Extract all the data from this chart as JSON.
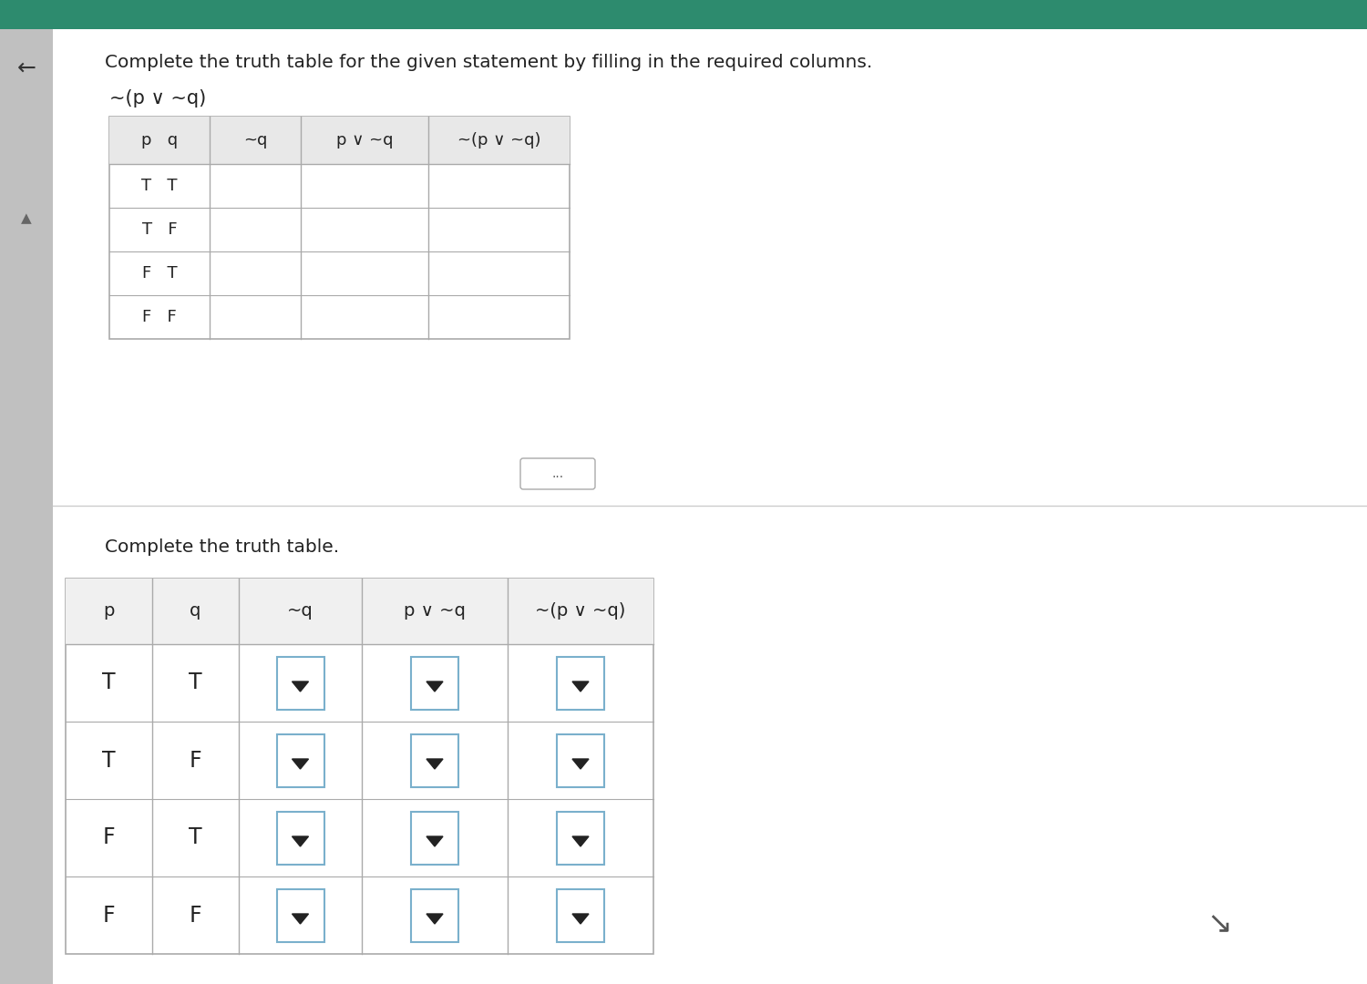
{
  "title_text": "Complete the truth table for the given statement by filling in the required columns.",
  "formula_text": "~(p ∨ ~q)",
  "table1_headers": [
    "p   q",
    "~q",
    "p ∨ ~q",
    "~(p ∨ ~q)"
  ],
  "table1_rows": [
    [
      "T   T",
      "",
      "",
      ""
    ],
    [
      "T   F",
      "",
      "",
      ""
    ],
    [
      "F   T",
      "",
      "",
      ""
    ],
    [
      "F   F",
      "",
      "",
      ""
    ]
  ],
  "subtitle_text": "Complete the truth table.",
  "table2_headers": [
    "p",
    "q",
    "~q",
    "p ∨ ~q",
    "~(p ∨ ~q)"
  ],
  "table2_rows": [
    [
      "T",
      "T"
    ],
    [
      "T",
      "F"
    ],
    [
      "F",
      "T"
    ],
    [
      "F",
      "F"
    ]
  ],
  "dots_text": "...",
  "green_bar_color": "#2d8b6e",
  "sidebar_color": "#c0c0c0",
  "white_bg": "#ffffff",
  "page_bg": "#e8e8e8",
  "table_border_color": "#aaaaaa",
  "table_header_bg": "#e8e8e8",
  "dropdown_border_color": "#7ab0cc",
  "text_color": "#222222",
  "light_text": "#555555"
}
